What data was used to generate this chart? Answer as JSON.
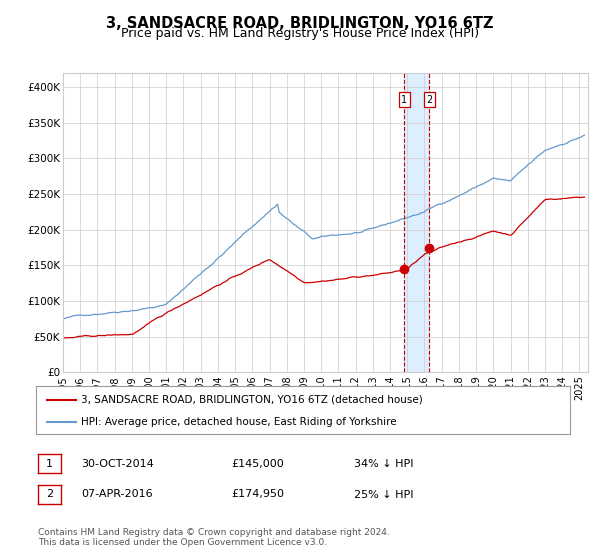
{
  "title": "3, SANDSACRE ROAD, BRIDLINGTON, YO16 6TZ",
  "subtitle": "Price paid vs. HM Land Registry's House Price Index (HPI)",
  "title_fontsize": 10.5,
  "subtitle_fontsize": 9,
  "ylabel_ticks": [
    "£0",
    "£50K",
    "£100K",
    "£150K",
    "£200K",
    "£250K",
    "£300K",
    "£350K",
    "£400K"
  ],
  "ylabel_values": [
    0,
    50000,
    100000,
    150000,
    200000,
    250000,
    300000,
    350000,
    400000
  ],
  "ylim": [
    0,
    420000
  ],
  "xlim_start": 1995.0,
  "xlim_end": 2025.5,
  "xtick_years": [
    1995,
    1996,
    1997,
    1998,
    1999,
    2000,
    2001,
    2002,
    2003,
    2004,
    2005,
    2006,
    2007,
    2008,
    2009,
    2010,
    2011,
    2012,
    2013,
    2014,
    2015,
    2016,
    2017,
    2018,
    2019,
    2020,
    2021,
    2022,
    2023,
    2024,
    2025
  ],
  "purchase1_date": 2014.83,
  "purchase1_price": 145000,
  "purchase2_date": 2016.27,
  "purchase2_price": 174950,
  "legend_red": "3, SANDSACRE ROAD, BRIDLINGTON, YO16 6TZ (detached house)",
  "legend_blue": "HPI: Average price, detached house, East Riding of Yorkshire",
  "table_row1": [
    "1",
    "30-OCT-2014",
    "£145,000",
    "34% ↓ HPI"
  ],
  "table_row2": [
    "2",
    "07-APR-2016",
    "£174,950",
    "25% ↓ HPI"
  ],
  "footer": "Contains HM Land Registry data © Crown copyright and database right 2024.\nThis data is licensed under the Open Government Licence v3.0.",
  "red_color": "#cc0000",
  "blue_color": "#6699cc",
  "shading_color": "#ddeeff",
  "grid_color": "#cccccc",
  "background_color": "#ffffff"
}
